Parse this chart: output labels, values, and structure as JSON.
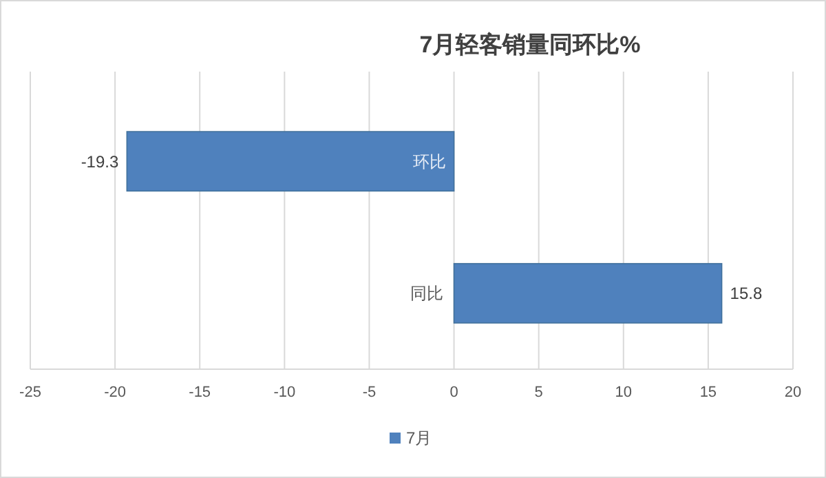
{
  "chart_data": {
    "type": "bar",
    "orientation": "horizontal",
    "title": "7月轻客销量同环比%",
    "categories": [
      "环比",
      "同比"
    ],
    "series": [
      {
        "name": "7月",
        "color": "#4f81bd",
        "values": [
          -19.3,
          15.8
        ]
      }
    ],
    "xlim": [
      -25,
      20
    ],
    "xticks": [
      -25,
      -20,
      -15,
      -10,
      -5,
      0,
      5,
      10,
      15,
      20
    ],
    "grid": "x",
    "legend": "bottom",
    "data_labels": true
  }
}
